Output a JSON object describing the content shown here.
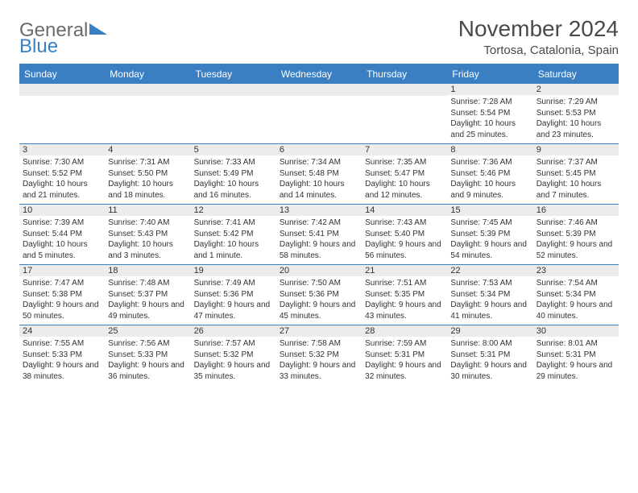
{
  "logo": {
    "line1": "General",
    "line2": "Blue"
  },
  "title": "November 2024",
  "location": "Tortosa, Catalonia, Spain",
  "colors": {
    "accent": "#3a7fc2",
    "header_text": "#ffffff",
    "cell_header_bg": "#ececec",
    "text": "#333333",
    "logo_gray": "#6b6b6b",
    "background": "#ffffff"
  },
  "layout": {
    "columns": 7,
    "rows": 5,
    "cell_border_color": "#3a7fc2",
    "font_family": "Arial",
    "dayhead_fontsize": 12,
    "date_fontsize": 11,
    "body_fontsize": 10,
    "title_fontsize": 28,
    "location_fontsize": 15,
    "leading_blanks": 5
  },
  "day_names": [
    "Sunday",
    "Monday",
    "Tuesday",
    "Wednesday",
    "Thursday",
    "Friday",
    "Saturday"
  ],
  "days": [
    {
      "date": "1",
      "sunrise": "Sunrise: 7:28 AM",
      "sunset": "Sunset: 5:54 PM",
      "daylight": "Daylight: 10 hours and 25 minutes."
    },
    {
      "date": "2",
      "sunrise": "Sunrise: 7:29 AM",
      "sunset": "Sunset: 5:53 PM",
      "daylight": "Daylight: 10 hours and 23 minutes."
    },
    {
      "date": "3",
      "sunrise": "Sunrise: 7:30 AM",
      "sunset": "Sunset: 5:52 PM",
      "daylight": "Daylight: 10 hours and 21 minutes."
    },
    {
      "date": "4",
      "sunrise": "Sunrise: 7:31 AM",
      "sunset": "Sunset: 5:50 PM",
      "daylight": "Daylight: 10 hours and 18 minutes."
    },
    {
      "date": "5",
      "sunrise": "Sunrise: 7:33 AM",
      "sunset": "Sunset: 5:49 PM",
      "daylight": "Daylight: 10 hours and 16 minutes."
    },
    {
      "date": "6",
      "sunrise": "Sunrise: 7:34 AM",
      "sunset": "Sunset: 5:48 PM",
      "daylight": "Daylight: 10 hours and 14 minutes."
    },
    {
      "date": "7",
      "sunrise": "Sunrise: 7:35 AM",
      "sunset": "Sunset: 5:47 PM",
      "daylight": "Daylight: 10 hours and 12 minutes."
    },
    {
      "date": "8",
      "sunrise": "Sunrise: 7:36 AM",
      "sunset": "Sunset: 5:46 PM",
      "daylight": "Daylight: 10 hours and 9 minutes."
    },
    {
      "date": "9",
      "sunrise": "Sunrise: 7:37 AM",
      "sunset": "Sunset: 5:45 PM",
      "daylight": "Daylight: 10 hours and 7 minutes."
    },
    {
      "date": "10",
      "sunrise": "Sunrise: 7:39 AM",
      "sunset": "Sunset: 5:44 PM",
      "daylight": "Daylight: 10 hours and 5 minutes."
    },
    {
      "date": "11",
      "sunrise": "Sunrise: 7:40 AM",
      "sunset": "Sunset: 5:43 PM",
      "daylight": "Daylight: 10 hours and 3 minutes."
    },
    {
      "date": "12",
      "sunrise": "Sunrise: 7:41 AM",
      "sunset": "Sunset: 5:42 PM",
      "daylight": "Daylight: 10 hours and 1 minute."
    },
    {
      "date": "13",
      "sunrise": "Sunrise: 7:42 AM",
      "sunset": "Sunset: 5:41 PM",
      "daylight": "Daylight: 9 hours and 58 minutes."
    },
    {
      "date": "14",
      "sunrise": "Sunrise: 7:43 AM",
      "sunset": "Sunset: 5:40 PM",
      "daylight": "Daylight: 9 hours and 56 minutes."
    },
    {
      "date": "15",
      "sunrise": "Sunrise: 7:45 AM",
      "sunset": "Sunset: 5:39 PM",
      "daylight": "Daylight: 9 hours and 54 minutes."
    },
    {
      "date": "16",
      "sunrise": "Sunrise: 7:46 AM",
      "sunset": "Sunset: 5:39 PM",
      "daylight": "Daylight: 9 hours and 52 minutes."
    },
    {
      "date": "17",
      "sunrise": "Sunrise: 7:47 AM",
      "sunset": "Sunset: 5:38 PM",
      "daylight": "Daylight: 9 hours and 50 minutes."
    },
    {
      "date": "18",
      "sunrise": "Sunrise: 7:48 AM",
      "sunset": "Sunset: 5:37 PM",
      "daylight": "Daylight: 9 hours and 49 minutes."
    },
    {
      "date": "19",
      "sunrise": "Sunrise: 7:49 AM",
      "sunset": "Sunset: 5:36 PM",
      "daylight": "Daylight: 9 hours and 47 minutes."
    },
    {
      "date": "20",
      "sunrise": "Sunrise: 7:50 AM",
      "sunset": "Sunset: 5:36 PM",
      "daylight": "Daylight: 9 hours and 45 minutes."
    },
    {
      "date": "21",
      "sunrise": "Sunrise: 7:51 AM",
      "sunset": "Sunset: 5:35 PM",
      "daylight": "Daylight: 9 hours and 43 minutes."
    },
    {
      "date": "22",
      "sunrise": "Sunrise: 7:53 AM",
      "sunset": "Sunset: 5:34 PM",
      "daylight": "Daylight: 9 hours and 41 minutes."
    },
    {
      "date": "23",
      "sunrise": "Sunrise: 7:54 AM",
      "sunset": "Sunset: 5:34 PM",
      "daylight": "Daylight: 9 hours and 40 minutes."
    },
    {
      "date": "24",
      "sunrise": "Sunrise: 7:55 AM",
      "sunset": "Sunset: 5:33 PM",
      "daylight": "Daylight: 9 hours and 38 minutes."
    },
    {
      "date": "25",
      "sunrise": "Sunrise: 7:56 AM",
      "sunset": "Sunset: 5:33 PM",
      "daylight": "Daylight: 9 hours and 36 minutes."
    },
    {
      "date": "26",
      "sunrise": "Sunrise: 7:57 AM",
      "sunset": "Sunset: 5:32 PM",
      "daylight": "Daylight: 9 hours and 35 minutes."
    },
    {
      "date": "27",
      "sunrise": "Sunrise: 7:58 AM",
      "sunset": "Sunset: 5:32 PM",
      "daylight": "Daylight: 9 hours and 33 minutes."
    },
    {
      "date": "28",
      "sunrise": "Sunrise: 7:59 AM",
      "sunset": "Sunset: 5:31 PM",
      "daylight": "Daylight: 9 hours and 32 minutes."
    },
    {
      "date": "29",
      "sunrise": "Sunrise: 8:00 AM",
      "sunset": "Sunset: 5:31 PM",
      "daylight": "Daylight: 9 hours and 30 minutes."
    },
    {
      "date": "30",
      "sunrise": "Sunrise: 8:01 AM",
      "sunset": "Sunset: 5:31 PM",
      "daylight": "Daylight: 9 hours and 29 minutes."
    }
  ]
}
